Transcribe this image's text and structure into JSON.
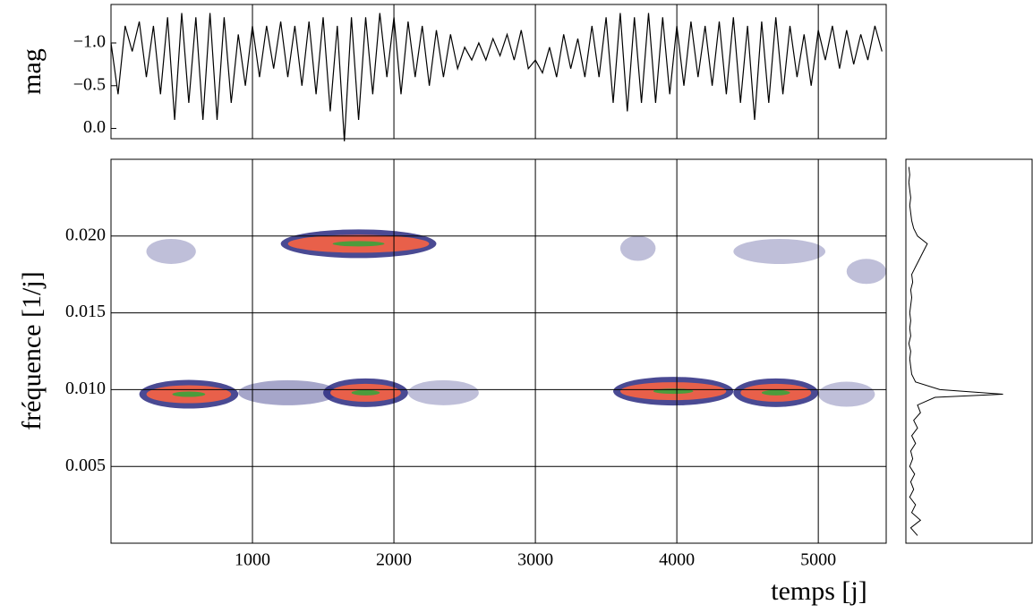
{
  "chart_data": [
    {
      "type": "line",
      "y_label": "mag",
      "color": "#000000",
      "xlim": [
        0,
        5480
      ],
      "xticks": [
        1000,
        2000,
        3000,
        4000,
        5000
      ],
      "ylim": [
        0.12,
        -1.45
      ],
      "yticks": [
        {
          "value": 0,
          "label": "0.0"
        },
        {
          "value": -0.5,
          "label": "−0.5"
        },
        {
          "value": -1,
          "label": "−1.0"
        }
      ],
      "x": [
        0,
        50,
        100,
        150,
        200,
        250,
        300,
        350,
        400,
        450,
        500,
        550,
        600,
        650,
        700,
        750,
        800,
        850,
        900,
        950,
        1000,
        1050,
        1100,
        1150,
        1200,
        1250,
        1300,
        1350,
        1400,
        1450,
        1500,
        1550,
        1600,
        1650,
        1700,
        1750,
        1800,
        1850,
        1900,
        1950,
        2000,
        2050,
        2100,
        2150,
        2200,
        2250,
        2300,
        2350,
        2400,
        2450,
        2500,
        2550,
        2600,
        2650,
        2700,
        2750,
        2800,
        2850,
        2900,
        2950,
        3000,
        3050,
        3100,
        3150,
        3200,
        3250,
        3300,
        3350,
        3400,
        3450,
        3500,
        3550,
        3600,
        3650,
        3700,
        3750,
        3800,
        3850,
        3900,
        3950,
        4000,
        4050,
        4100,
        4150,
        4200,
        4250,
        4300,
        4350,
        4400,
        4450,
        4500,
        4550,
        4600,
        4650,
        4700,
        4750,
        4800,
        4850,
        4900,
        4950,
        5000,
        5050,
        5100,
        5150,
        5200,
        5250,
        5300,
        5350,
        5400,
        5450
      ],
      "values": [
        -1.0,
        -0.4,
        -1.2,
        -0.9,
        -1.25,
        -0.6,
        -1.2,
        -0.4,
        -1.3,
        -0.1,
        -1.35,
        -0.3,
        -1.3,
        -0.1,
        -1.35,
        -0.1,
        -1.3,
        -0.3,
        -1.1,
        -0.5,
        -1.2,
        -0.6,
        -1.2,
        -0.7,
        -1.25,
        -0.6,
        -1.2,
        -0.5,
        -1.25,
        -0.4,
        -1.3,
        -0.2,
        -1.2,
        0.15,
        -1.3,
        -0.1,
        -1.3,
        -0.4,
        -1.35,
        -0.6,
        -1.3,
        -0.4,
        -1.25,
        -0.6,
        -1.2,
        -0.5,
        -1.15,
        -0.6,
        -1.1,
        -0.7,
        -0.95,
        -0.8,
        -1.0,
        -0.8,
        -1.05,
        -0.85,
        -1.1,
        -0.8,
        -1.15,
        -0.7,
        -0.8,
        -0.65,
        -0.95,
        -0.6,
        -1.1,
        -0.7,
        -1.05,
        -0.6,
        -1.2,
        -0.6,
        -1.3,
        -0.3,
        -1.35,
        -0.2,
        -1.3,
        -0.3,
        -1.35,
        -0.3,
        -1.3,
        -0.4,
        -1.2,
        -0.5,
        -1.25,
        -0.6,
        -1.2,
        -0.5,
        -1.25,
        -0.4,
        -1.3,
        -0.3,
        -1.2,
        -0.1,
        -1.25,
        -0.3,
        -1.3,
        -0.4,
        -1.2,
        -0.6,
        -1.1,
        -0.5,
        -1.15,
        -0.8,
        -1.2,
        -0.7,
        -1.15,
        -0.75,
        -1.1,
        -0.8,
        -1.2,
        -0.9
      ]
    },
    {
      "type": "spectrogram",
      "x_label": "temps [j]",
      "y_label": "fréquence [1/j]",
      "xlim": [
        0,
        5480
      ],
      "xticks": [
        1000,
        2000,
        3000,
        4000,
        5000
      ],
      "ylim": [
        0,
        0.025
      ],
      "yticks": [
        0.005,
        {
          "value": 0.01,
          "label": "0.010"
        },
        0.015,
        {
          "value": 0.02,
          "label": "0.020"
        }
      ],
      "colormap": [
        "#2a2a80",
        "#e8604a",
        "#4c9c3c"
      ],
      "ridges": [
        {
          "x": [
            200,
            900
          ],
          "freq": 0.0097,
          "power": 1
        },
        {
          "x": [
            900,
            1600
          ],
          "freq": 0.0098,
          "power": 0.7
        },
        {
          "x": [
            1500,
            2100
          ],
          "freq": 0.0098,
          "power": 1
        },
        {
          "x": [
            2100,
            2600
          ],
          "freq": 0.0098,
          "power": 0.5
        },
        {
          "x": [
            3550,
            4400
          ],
          "freq": 0.0099,
          "power": 1
        },
        {
          "x": [
            4400,
            5000
          ],
          "freq": 0.0098,
          "power": 1
        },
        {
          "x": [
            5000,
            5400
          ],
          "freq": 0.0097,
          "power": 0.5
        },
        {
          "x": [
            250,
            600
          ],
          "freq": 0.019,
          "power": 0.5
        },
        {
          "x": [
            1200,
            2300
          ],
          "freq": 0.0195,
          "power": 1
        },
        {
          "x": [
            3600,
            3850
          ],
          "freq": 0.0192,
          "power": 0.5
        },
        {
          "x": [
            4400,
            5050
          ],
          "freq": 0.019,
          "power": 0.5
        },
        {
          "x": [
            5200,
            5480
          ],
          "freq": 0.0177,
          "power": 0.5
        }
      ]
    },
    {
      "type": "periodogram",
      "color": "#000000",
      "xlim": [
        0,
        1.3
      ],
      "ylim": [
        0,
        0.025
      ],
      "freq": [
        0.0005,
        0.001,
        0.0015,
        0.002,
        0.0025,
        0.003,
        0.0035,
        0.004,
        0.0045,
        0.005,
        0.0055,
        0.006,
        0.0065,
        0.007,
        0.0075,
        0.008,
        0.0085,
        0.009,
        0.0095,
        0.0097,
        0.01,
        0.0105,
        0.011,
        0.0115,
        0.012,
        0.0125,
        0.013,
        0.0135,
        0.014,
        0.0145,
        0.015,
        0.0155,
        0.016,
        0.0165,
        0.017,
        0.0175,
        0.018,
        0.0185,
        0.019,
        0.0195,
        0.02,
        0.0205,
        0.021,
        0.0215,
        0.022,
        0.0225,
        0.023,
        0.0235,
        0.024,
        0.0245
      ],
      "values": [
        0.12,
        0.05,
        0.15,
        0.06,
        0.1,
        0.04,
        0.08,
        0.05,
        0.09,
        0.04,
        0.07,
        0.05,
        0.1,
        0.06,
        0.12,
        0.08,
        0.15,
        0.12,
        0.3,
        1.0,
        0.35,
        0.1,
        0.06,
        0.05,
        0.04,
        0.05,
        0.03,
        0.05,
        0.04,
        0.05,
        0.04,
        0.05,
        0.06,
        0.05,
        0.07,
        0.06,
        0.1,
        0.14,
        0.18,
        0.22,
        0.12,
        0.08,
        0.06,
        0.05,
        0.04,
        0.05,
        0.04,
        0.03,
        0.04,
        0.03
      ]
    }
  ]
}
